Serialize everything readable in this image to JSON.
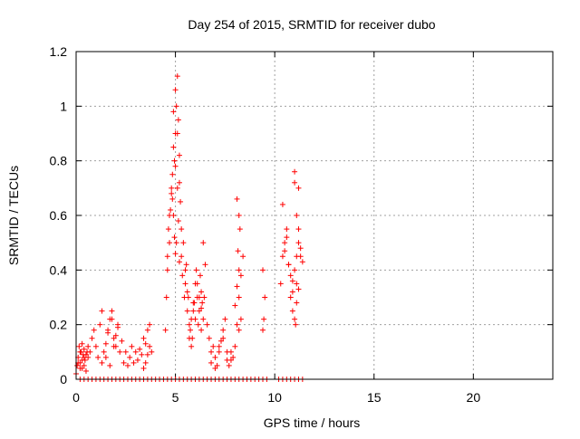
{
  "chart_data": {
    "type": "scatter",
    "title": "Day 254 of 2015, SRMTID for receiver dubo",
    "xlabel": "GPS time / hours",
    "ylabel": "SRMTID / TECUs",
    "xlim": [
      0,
      24
    ],
    "ylim": [
      0,
      1.2
    ],
    "xticks": [
      0,
      5,
      10,
      15,
      20
    ],
    "yticks": [
      0,
      0.2,
      0.4,
      0.6,
      0.8,
      1,
      1.2
    ],
    "xtick_labels": [
      "0",
      "5",
      "10",
      "15",
      "20"
    ],
    "ytick_labels": [
      "0",
      "0.2",
      "0.4",
      "0.6",
      "0.8",
      "1",
      "1.2"
    ],
    "grid": true,
    "marker": "plus",
    "color": "#ff0000",
    "series": [
      {
        "x": [
          0.05,
          0.1,
          0.15,
          0.2,
          0.25,
          0.3,
          0.35,
          0.4,
          0.45,
          0.5,
          0.55,
          0.6,
          0.0,
          0.1,
          0.2,
          0.3,
          0.4,
          0.5,
          0.6,
          0.2,
          0.3,
          0.4,
          0.7,
          0.8,
          0.9,
          1.0,
          1.1,
          1.2,
          1.3,
          1.4,
          1.5,
          1.6,
          1.7,
          1.8,
          1.9,
          2.0,
          2.1,
          2.2,
          2.3,
          2.4,
          2.5,
          1.5,
          1.7,
          1.9,
          2.1,
          1.8,
          2.0,
          1.6,
          1.3,
          2.6,
          2.7,
          2.8,
          2.9,
          3.0,
          3.1,
          3.2,
          3.3,
          3.4,
          3.5,
          3.6,
          3.7,
          3.8,
          3.5,
          3.6,
          3.7,
          3.4,
          4.5,
          4.55,
          4.6,
          4.65,
          4.7,
          4.75,
          4.8,
          4.85,
          4.9,
          4.95,
          5.0,
          5.05,
          5.1,
          5.15,
          5.2,
          5.25,
          5.3,
          4.6,
          4.7,
          4.8,
          4.9,
          5.0,
          5.1,
          5.2,
          4.9,
          5.0,
          5.1,
          5.05,
          5.0,
          4.95,
          5.15,
          5.2,
          4.85,
          5.3,
          5.35,
          5.4,
          5.45,
          5.5,
          5.55,
          5.6,
          5.65,
          5.7,
          5.75,
          5.8,
          5.85,
          5.9,
          5.95,
          6.0,
          6.05,
          6.1,
          6.15,
          6.2,
          6.25,
          6.3,
          6.35,
          6.4,
          6.45,
          6.5,
          5.5,
          5.6,
          5.7,
          5.8,
          5.9,
          6.0,
          6.1,
          6.2,
          6.3,
          6.4,
          6.3,
          6.6,
          6.7,
          6.8,
          6.9,
          7.0,
          7.1,
          7.2,
          7.3,
          7.4,
          7.5,
          7.6,
          7.7,
          7.8,
          7.9,
          8.0,
          8.1,
          8.2,
          8.3,
          8.4,
          6.8,
          7.0,
          7.2,
          7.4,
          7.6,
          7.8,
          8.0,
          8.1,
          8.2,
          8.15,
          8.25,
          8.2,
          8.1,
          8.3,
          8.2,
          9.4,
          9.5,
          9.45,
          9.4,
          10.3,
          10.4,
          10.5,
          10.6,
          10.7,
          10.8,
          10.9,
          11.0,
          11.1,
          11.2,
          11.3,
          11.4,
          10.4,
          10.6,
          10.8,
          11.0,
          11.2,
          10.9,
          11.0,
          11.1,
          11.2,
          10.5,
          10.7,
          10.9,
          11.1,
          11.3,
          11.0,
          11.05,
          11.1,
          11.2
        ],
        "y": [
          0.05,
          0.08,
          0.12,
          0.06,
          0.1,
          0.04,
          0.09,
          0.11,
          0.07,
          0.03,
          0.1,
          0.08,
          0.02,
          0.06,
          0.1,
          0.13,
          0.05,
          0.09,
          0.12,
          0.04,
          0.07,
          0.08,
          0.1,
          0.15,
          0.18,
          0.12,
          0.08,
          0.2,
          0.06,
          0.1,
          0.13,
          0.18,
          0.22,
          0.25,
          0.12,
          0.16,
          0.2,
          0.1,
          0.14,
          0.06,
          0.1,
          0.08,
          0.05,
          0.15,
          0.19,
          0.22,
          0.12,
          0.17,
          0.25,
          0.05,
          0.08,
          0.12,
          0.06,
          0.1,
          0.07,
          0.11,
          0.09,
          0.15,
          0.13,
          0.18,
          0.2,
          0.1,
          0.06,
          0.09,
          0.12,
          0.04,
          0.18,
          0.3,
          0.45,
          0.55,
          0.5,
          0.62,
          0.7,
          0.75,
          0.6,
          0.8,
          0.9,
          1.0,
          1.11,
          0.95,
          0.72,
          0.65,
          0.55,
          0.4,
          0.6,
          0.68,
          0.85,
          0.78,
          0.9,
          0.82,
          0.98,
          1.06,
          0.7,
          0.5,
          0.46,
          0.52,
          0.58,
          0.43,
          0.66,
          0.45,
          0.38,
          0.5,
          0.3,
          0.35,
          0.42,
          0.25,
          0.3,
          0.2,
          0.18,
          0.22,
          0.15,
          0.25,
          0.28,
          0.35,
          0.4,
          0.3,
          0.2,
          0.25,
          0.38,
          0.32,
          0.28,
          0.22,
          0.3,
          0.42,
          0.4,
          0.32,
          0.15,
          0.12,
          0.28,
          0.22,
          0.35,
          0.3,
          0.18,
          0.5,
          0.26,
          0.2,
          0.15,
          0.1,
          0.12,
          0.08,
          0.05,
          0.1,
          0.14,
          0.18,
          0.22,
          0.07,
          0.05,
          0.1,
          0.08,
          0.12,
          0.2,
          0.3,
          0.38,
          0.45,
          0.06,
          0.04,
          0.12,
          0.15,
          0.1,
          0.07,
          0.27,
          0.66,
          0.6,
          0.47,
          0.55,
          0.4,
          0.34,
          0.22,
          0.18,
          0.4,
          0.3,
          0.22,
          0.18,
          0.35,
          0.45,
          0.5,
          0.55,
          0.42,
          0.3,
          0.25,
          0.4,
          0.45,
          0.5,
          0.48,
          0.43,
          0.64,
          0.52,
          0.38,
          0.76,
          0.7,
          0.32,
          0.22,
          0.35,
          0.55,
          0.47,
          0.42,
          0.36,
          0.6,
          0.45,
          0.72,
          0.2,
          0.28,
          0.33
        ]
      }
    ],
    "zero_line_x": [
      0.2,
      0.4,
      0.6,
      0.8,
      1.0,
      1.2,
      1.4,
      1.6,
      1.8,
      2.0,
      2.2,
      2.4,
      2.6,
      2.8,
      3.0,
      3.2,
      3.4,
      3.6,
      3.8,
      4.0,
      4.2,
      4.4,
      4.6,
      4.8,
      5.0,
      5.2,
      5.4,
      5.6,
      5.8,
      6.0,
      6.2,
      6.4,
      6.6,
      6.8,
      7.0,
      7.2,
      7.4,
      7.6,
      7.8,
      8.0,
      8.2,
      8.4,
      8.6,
      8.8,
      9.0,
      9.2,
      9.4,
      9.6,
      10.2,
      10.4,
      10.6,
      10.8,
      11.0,
      11.2,
      11.4
    ]
  }
}
